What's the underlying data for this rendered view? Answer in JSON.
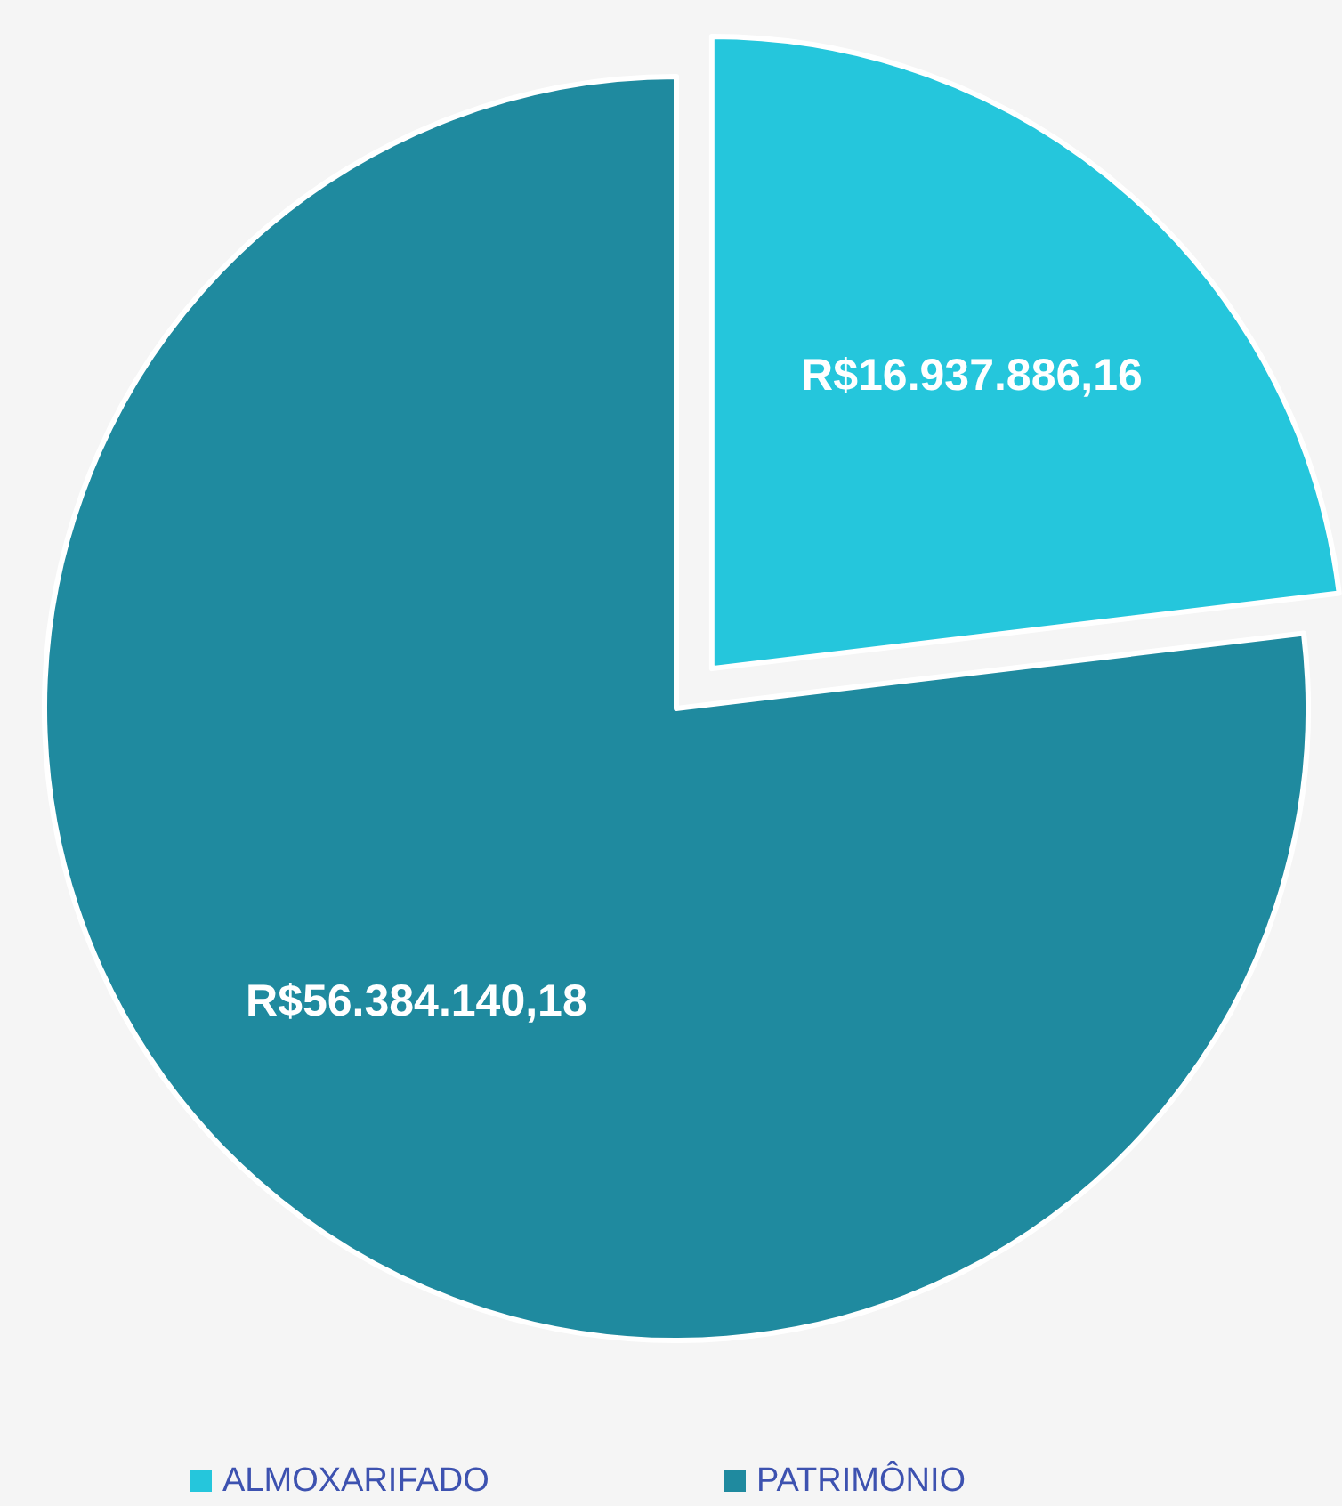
{
  "chart_data": {
    "type": "pie",
    "categories": [
      "ALMOXARIFADO",
      "PATRIMÔNIO"
    ],
    "values": [
      16937886.16,
      56384140.18
    ],
    "colors": [
      "#25c6dc",
      "#1f8a9f"
    ],
    "value_labels": [
      "R$16.937.886,16",
      "R$56.384.140,18"
    ],
    "legend": "bottom"
  }
}
